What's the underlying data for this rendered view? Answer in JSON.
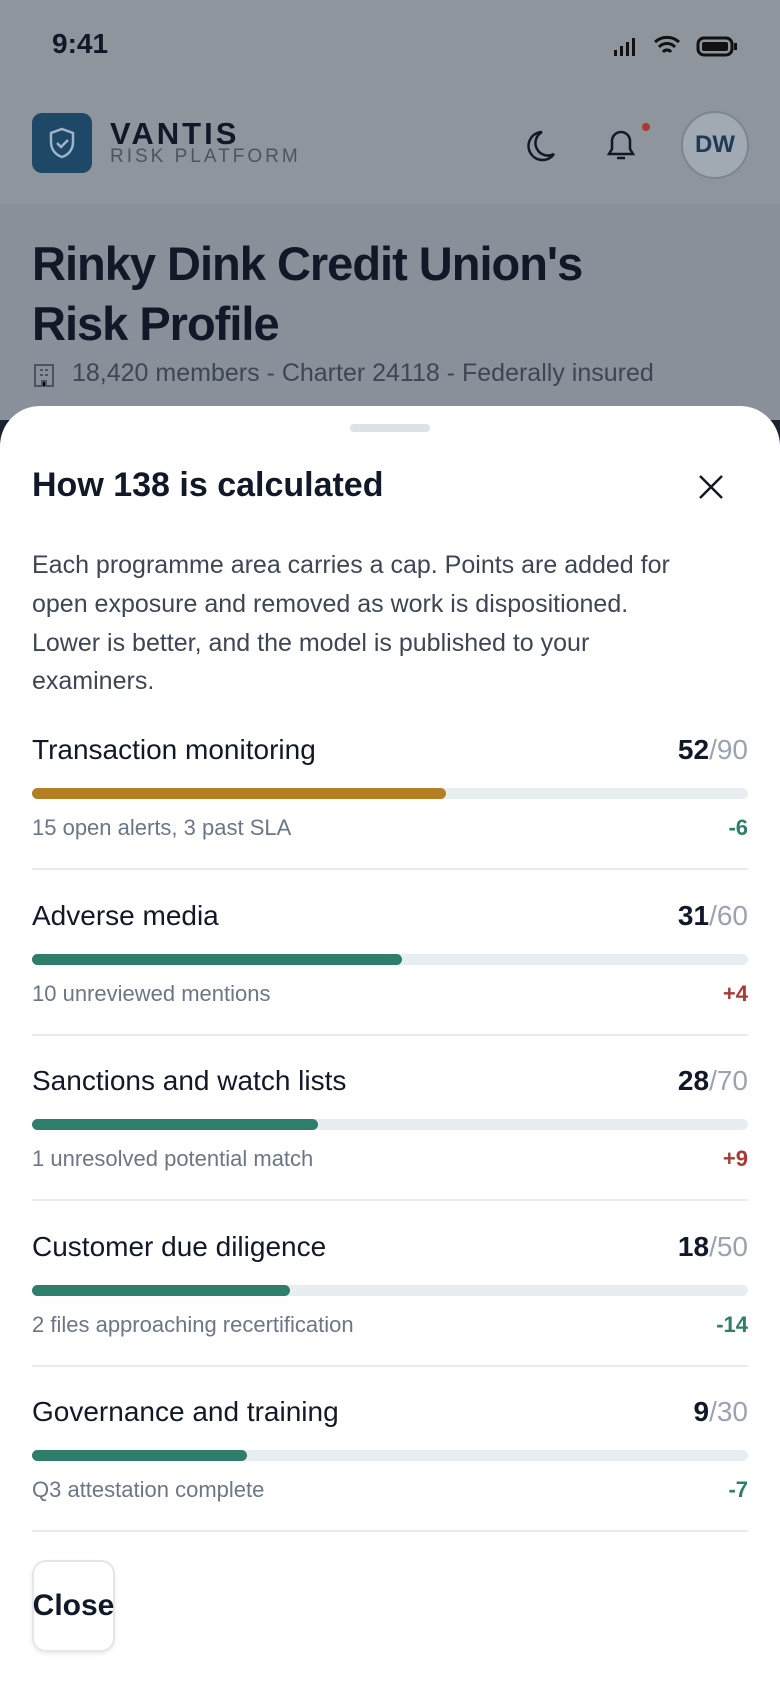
{
  "status_bar": {
    "time": "9:41"
  },
  "header": {
    "brand": "VANTIS",
    "tagline": "RISK PLATFORM",
    "avatar": "DW"
  },
  "profile": {
    "title_line1": "Rinky Dink Credit Union's",
    "title_line2": "Risk Profile",
    "meta": "18,420 members - Charter 24118 - Federally insured"
  },
  "sheet": {
    "title": "How 138 is calculated",
    "description_lines": [
      "Each programme area carries a cap. Points are added for",
      "open exposure and removed as work is dispositioned.",
      "Lower is better, and the model is published to your",
      "examiners."
    ],
    "items": [
      {
        "name": "Transaction monitoring",
        "score": 52,
        "cap": {
          "value": 90,
          "label": "/90"
        },
        "detail": "15 open alerts, 3 past SLA",
        "delta": "-6",
        "color": "#b47f22",
        "delta_color": "#2f7d6d"
      },
      {
        "name": "Adverse media",
        "score": 31,
        "cap": {
          "value": 60,
          "label": "/60"
        },
        "detail": "10 unreviewed mentions",
        "delta": "+4",
        "color": "#2f7d6d",
        "delta_color": "#a83a32"
      },
      {
        "name": "Sanctions and watch lists",
        "score": 28,
        "cap": {
          "value": 70,
          "label": "/70"
        },
        "detail": "1 unresolved potential match",
        "delta": "+9",
        "color": "#2f7d6d",
        "delta_color": "#a83a32"
      },
      {
        "name": "Customer due diligence",
        "score": 18,
        "cap": {
          "value": 50,
          "label": "/50"
        },
        "detail": "2 files approaching recertification",
        "delta": "-14",
        "color": "#2f7d6d",
        "delta_color": "#2f7d6d"
      },
      {
        "name": "Governance and training",
        "score": 9,
        "cap": {
          "value": 30,
          "label": "/30"
        },
        "detail": "Q3 attestation complete",
        "delta": "-7",
        "color": "#2f7d6d",
        "delta_color": "#2f7d6d"
      }
    ],
    "close_button": "Close"
  }
}
